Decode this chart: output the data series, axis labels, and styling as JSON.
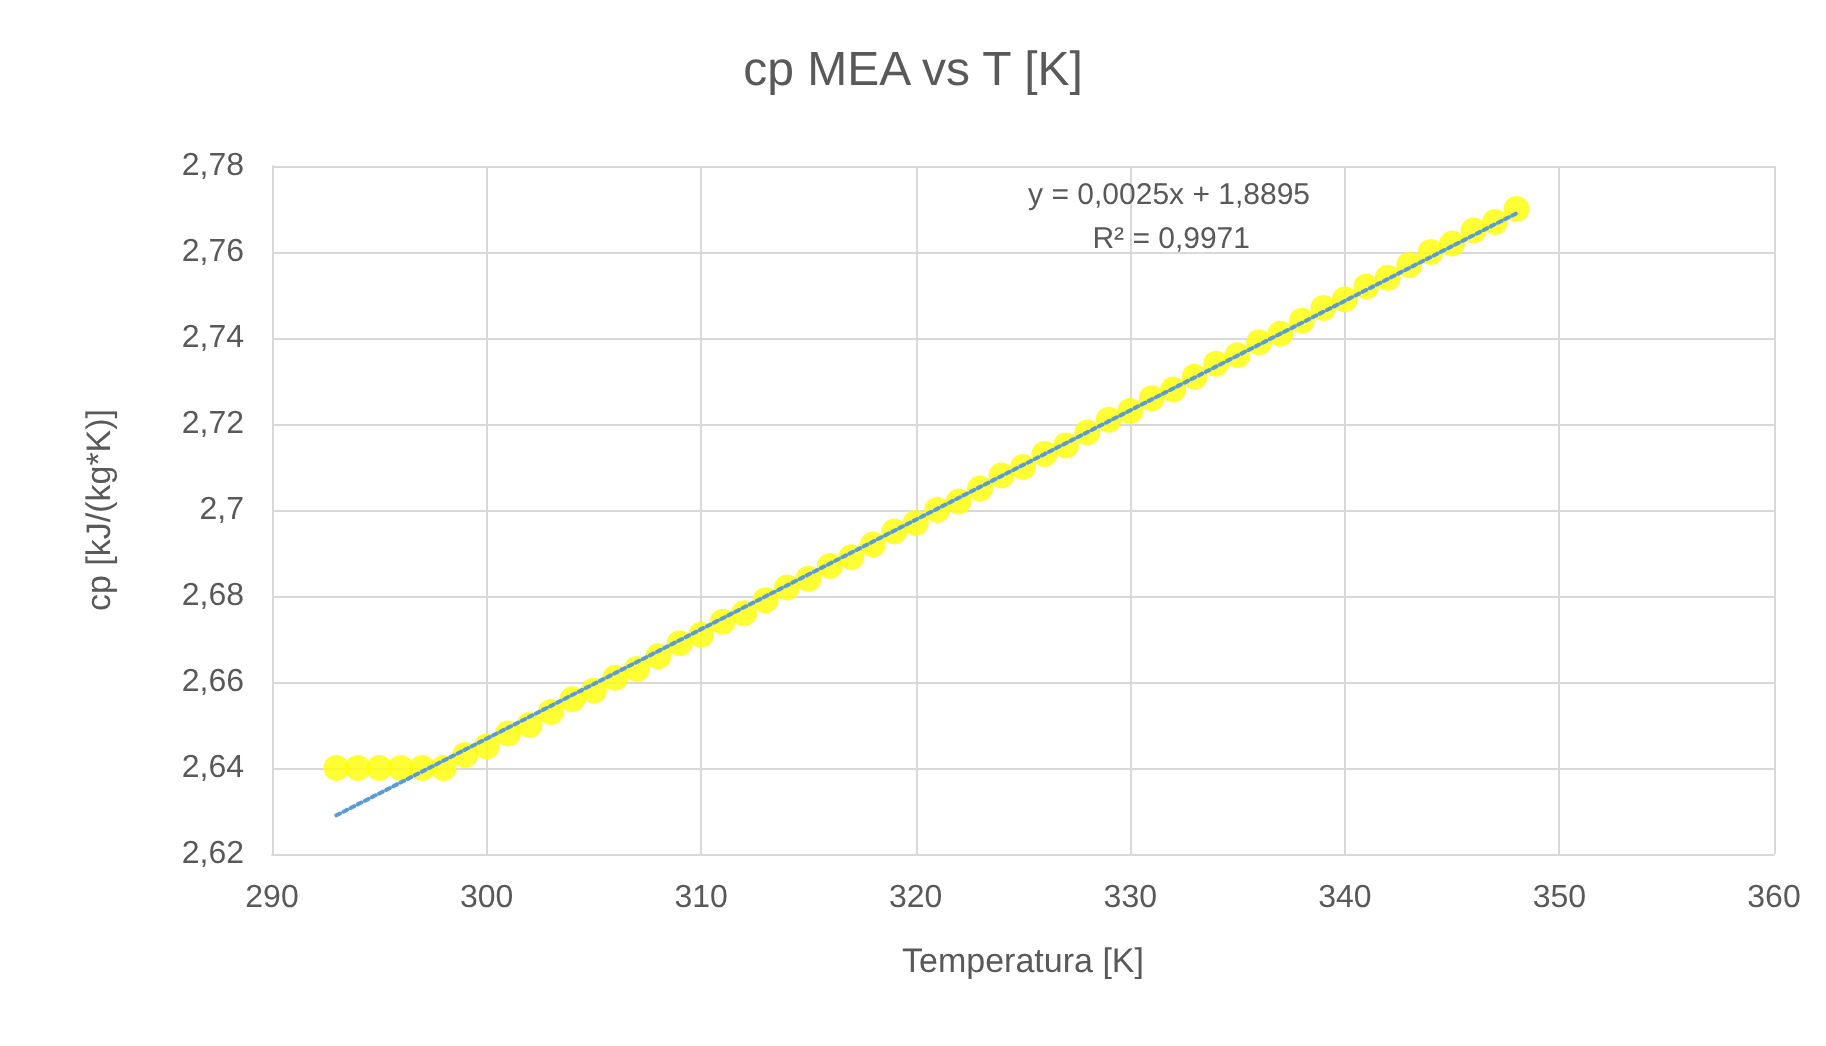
{
  "chart_data": {
    "type": "scatter",
    "title": "cp MEA vs T [K]",
    "xlabel": "Temperatura [K]",
    "ylabel": "cp [kJ/(kg*K)]",
    "annotations": [
      "y = 0,0025x + 1,8895",
      "R² = 0,9971"
    ],
    "xlim": [
      290,
      360
    ],
    "xticks": [
      290,
      300,
      310,
      320,
      330,
      340,
      350,
      360
    ],
    "ylim": [
      2.62,
      2.78
    ],
    "yticks": [
      {
        "value": 2.62,
        "label": "2,62"
      },
      {
        "value": 2.64,
        "label": "2,64"
      },
      {
        "value": 2.66,
        "label": "2,66"
      },
      {
        "value": 2.68,
        "label": "2,68"
      },
      {
        "value": 2.7,
        "label": "2,7"
      },
      {
        "value": 2.72,
        "label": "2,72"
      },
      {
        "value": 2.74,
        "label": "2,74"
      },
      {
        "value": 2.76,
        "label": "2,76"
      },
      {
        "value": 2.78,
        "label": "2,78"
      }
    ],
    "grid": true,
    "marker": "circle",
    "series": [
      {
        "color": "#ffff00",
        "x": [
          293,
          294,
          295,
          296,
          297,
          298,
          299,
          300,
          301,
          302,
          303,
          304,
          305,
          306,
          307,
          308,
          309,
          310,
          311,
          312,
          313,
          314,
          315,
          316,
          317,
          318,
          319,
          320,
          321,
          322,
          323,
          324,
          325,
          326,
          327,
          328,
          329,
          330,
          331,
          332,
          333,
          334,
          335,
          336,
          337,
          338,
          339,
          340,
          341,
          342,
          343,
          344,
          345,
          346,
          347,
          348
        ],
        "values": [
          2.64,
          2.64,
          2.64,
          2.64,
          2.64,
          2.64,
          2.643,
          2.645,
          2.648,
          2.65,
          2.653,
          2.656,
          2.658,
          2.661,
          2.663,
          2.666,
          2.669,
          2.671,
          2.674,
          2.676,
          2.679,
          2.682,
          2.684,
          2.687,
          2.689,
          2.692,
          2.695,
          2.697,
          2.7,
          2.702,
          2.705,
          2.708,
          2.71,
          2.713,
          2.715,
          2.718,
          2.721,
          2.723,
          2.726,
          2.728,
          2.731,
          2.734,
          2.736,
          2.739,
          2.741,
          2.744,
          2.747,
          2.749,
          2.752,
          2.754,
          2.757,
          2.76,
          2.762,
          2.765,
          2.767,
          2.77
        ]
      },
      {
        "type": "line",
        "color": "#5b9bd5",
        "line_style": "dotted",
        "marker": "none",
        "x": [
          293,
          348
        ],
        "values": [
          2.629,
          2.769
        ]
      }
    ]
  }
}
